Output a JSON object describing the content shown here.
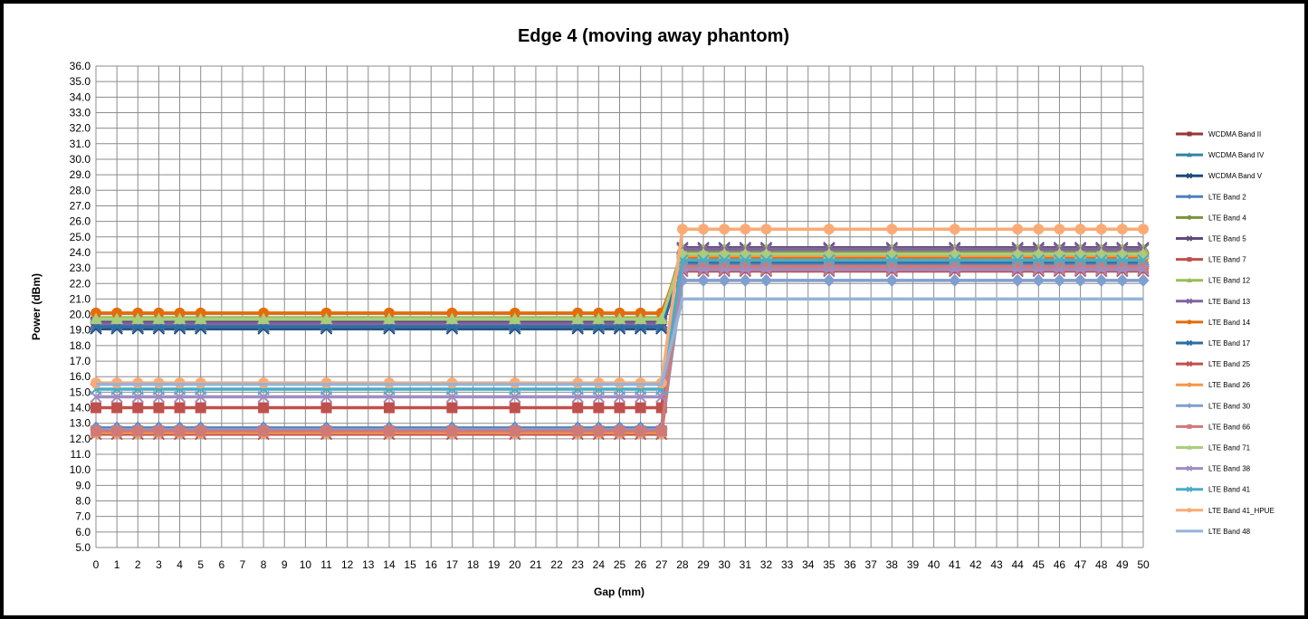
{
  "chart_data": {
    "type": "line",
    "title": "Edge 4 (moving away phantom)",
    "xlabel": "Gap (mm)",
    "ylabel": "Power (dBm)",
    "xlim": [
      0,
      50
    ],
    "ylim": [
      5,
      36
    ],
    "y_step": 1,
    "grid": true,
    "legend_position": "right",
    "x": [
      0,
      1,
      2,
      3,
      4,
      5,
      8,
      11,
      14,
      17,
      20,
      23,
      24,
      25,
      26,
      27,
      28,
      29,
      30,
      31,
      32,
      35,
      38,
      41,
      44,
      45,
      46,
      47,
      48,
      49,
      50
    ],
    "series": [
      {
        "name": "WCDMA Band II",
        "color": "#953735",
        "marker": "square",
        "near": 12.5,
        "far": 23.0
      },
      {
        "name": "WCDMA Band IV",
        "color": "#31859C",
        "marker": "triangle",
        "near": 19.3,
        "far": 23.5
      },
      {
        "name": "WCDMA Band V",
        "color": "#1F497D",
        "marker": "x",
        "near": 19.1,
        "far": 23.3
      },
      {
        "name": "LTE Band 2",
        "color": "#4F81BD",
        "marker": "diamond",
        "near": 12.7,
        "far": 23.2
      },
      {
        "name": "LTE Band 4",
        "color": "#77933C",
        "marker": "circle",
        "near": 19.6,
        "far": 24.0
      },
      {
        "name": "LTE Band 5",
        "color": "#604A7B",
        "marker": "x",
        "near": 19.5,
        "far": 24.3
      },
      {
        "name": "LTE Band 7",
        "color": "#C0504D",
        "marker": "square",
        "near": 14.0,
        "far": 23.0
      },
      {
        "name": "LTE Band 12",
        "color": "#9BBB59",
        "marker": "triangle",
        "near": 19.8,
        "far": 24.2
      },
      {
        "name": "LTE Band 13",
        "color": "#8064A2",
        "marker": "x",
        "near": 19.4,
        "far": 24.2
      },
      {
        "name": "LTE Band 14",
        "color": "#E46C0A",
        "marker": "circle",
        "near": 20.1,
        "far": 23.7
      },
      {
        "name": "LTE Band 17",
        "color": "#2C6EA3",
        "marker": "x",
        "near": 19.2,
        "far": 23.4
      },
      {
        "name": "LTE Band 25",
        "color": "#C0504D",
        "marker": "x",
        "near": 12.3,
        "far": 22.8
      },
      {
        "name": "LTE Band 26",
        "color": "#F79646",
        "marker": "circle",
        "near": 12.4,
        "far": 23.8
      },
      {
        "name": "LTE Band 30",
        "color": "#7F9FD0",
        "marker": "diamond",
        "near": 12.6,
        "far": 22.2
      },
      {
        "name": "LTE Band 66",
        "color": "#D07A78",
        "marker": "square",
        "near": 12.5,
        "far": 23.1
      },
      {
        "name": "LTE Band 71",
        "color": "#A9CD7E",
        "marker": "triangle",
        "near": 19.7,
        "far": 23.9
      },
      {
        "name": "LTE Band 38",
        "color": "#A08CC2",
        "marker": "x",
        "near": 14.7,
        "far": 22.9
      },
      {
        "name": "LTE Band 41",
        "color": "#4BACC6",
        "marker": "x",
        "near": 15.2,
        "far": 23.5
      },
      {
        "name": "LTE Band 41_HPUE",
        "color": "#FAAB75",
        "marker": "circle",
        "near": 15.6,
        "far": 25.5
      },
      {
        "name": "LTE Band 48",
        "color": "#95B3D7",
        "marker": "none",
        "near": 15.5,
        "far": 21.0
      }
    ]
  }
}
